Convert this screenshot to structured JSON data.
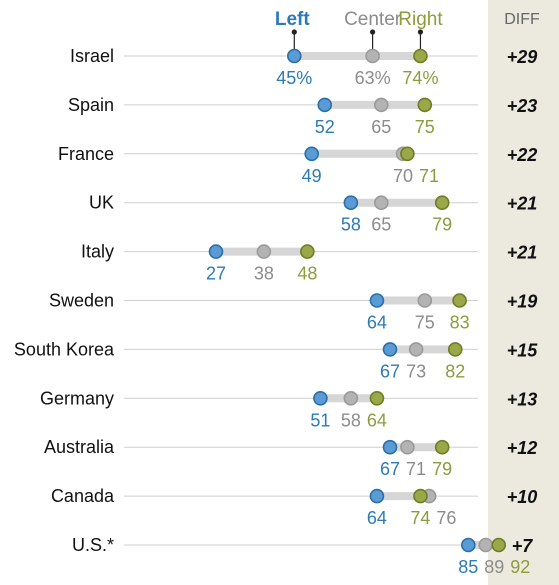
{
  "chart_data": {
    "type": "dot",
    "legend": [
      {
        "name": "Left",
        "color": "#2d7bb6"
      },
      {
        "name": "Center",
        "color": "#8c8c8c"
      },
      {
        "name": "Right",
        "color": "#8c9c3c"
      }
    ],
    "diff_header": "DIFF",
    "xlim": [
      20,
      95
    ],
    "countries": [
      {
        "name": "Israel",
        "left": 45,
        "center": 63,
        "right": 74,
        "left_label": "45%",
        "center_label": "63%",
        "right_label": "74%",
        "diff": "+29"
      },
      {
        "name": "Spain",
        "left": 52,
        "center": 65,
        "right": 75,
        "left_label": "52",
        "center_label": "65",
        "right_label": "75",
        "diff": "+23"
      },
      {
        "name": "France",
        "left": 49,
        "center": 70,
        "right": 71,
        "left_label": "49",
        "center_label": "70",
        "right_label": "71",
        "diff": "+22"
      },
      {
        "name": "UK",
        "left": 58,
        "center": 65,
        "right": 79,
        "left_label": "58",
        "center_label": "65",
        "right_label": "79",
        "diff": "+21"
      },
      {
        "name": "Italy",
        "left": 27,
        "center": 38,
        "right": 48,
        "left_label": "27",
        "center_label": "38",
        "right_label": "48",
        "diff": "+21"
      },
      {
        "name": "Sweden",
        "left": 64,
        "center": 75,
        "right": 83,
        "left_label": "64",
        "center_label": "75",
        "right_label": "83",
        "diff": "+19"
      },
      {
        "name": "South Korea",
        "left": 67,
        "center": 73,
        "right": 82,
        "left_label": "67",
        "center_label": "73",
        "right_label": "82",
        "diff": "+15"
      },
      {
        "name": "Germany",
        "left": 51,
        "center": 58,
        "right": 64,
        "left_label": "51",
        "center_label": "58",
        "right_label": "64",
        "diff": "+13"
      },
      {
        "name": "Australia",
        "left": 67,
        "center": 71,
        "right": 79,
        "left_label": "67",
        "center_label": "71",
        "right_label": "79",
        "diff": "+12"
      },
      {
        "name": "Canada",
        "left": 64,
        "center": 76,
        "right": 74,
        "left_label": "64",
        "center_label": "76",
        "right_label": "74",
        "diff": "+10"
      },
      {
        "name": "U.S.*",
        "left": 85,
        "center": 89,
        "right": 92,
        "left_label": "85",
        "center_label": "89",
        "right_label": "92",
        "diff": "+7"
      }
    ]
  }
}
